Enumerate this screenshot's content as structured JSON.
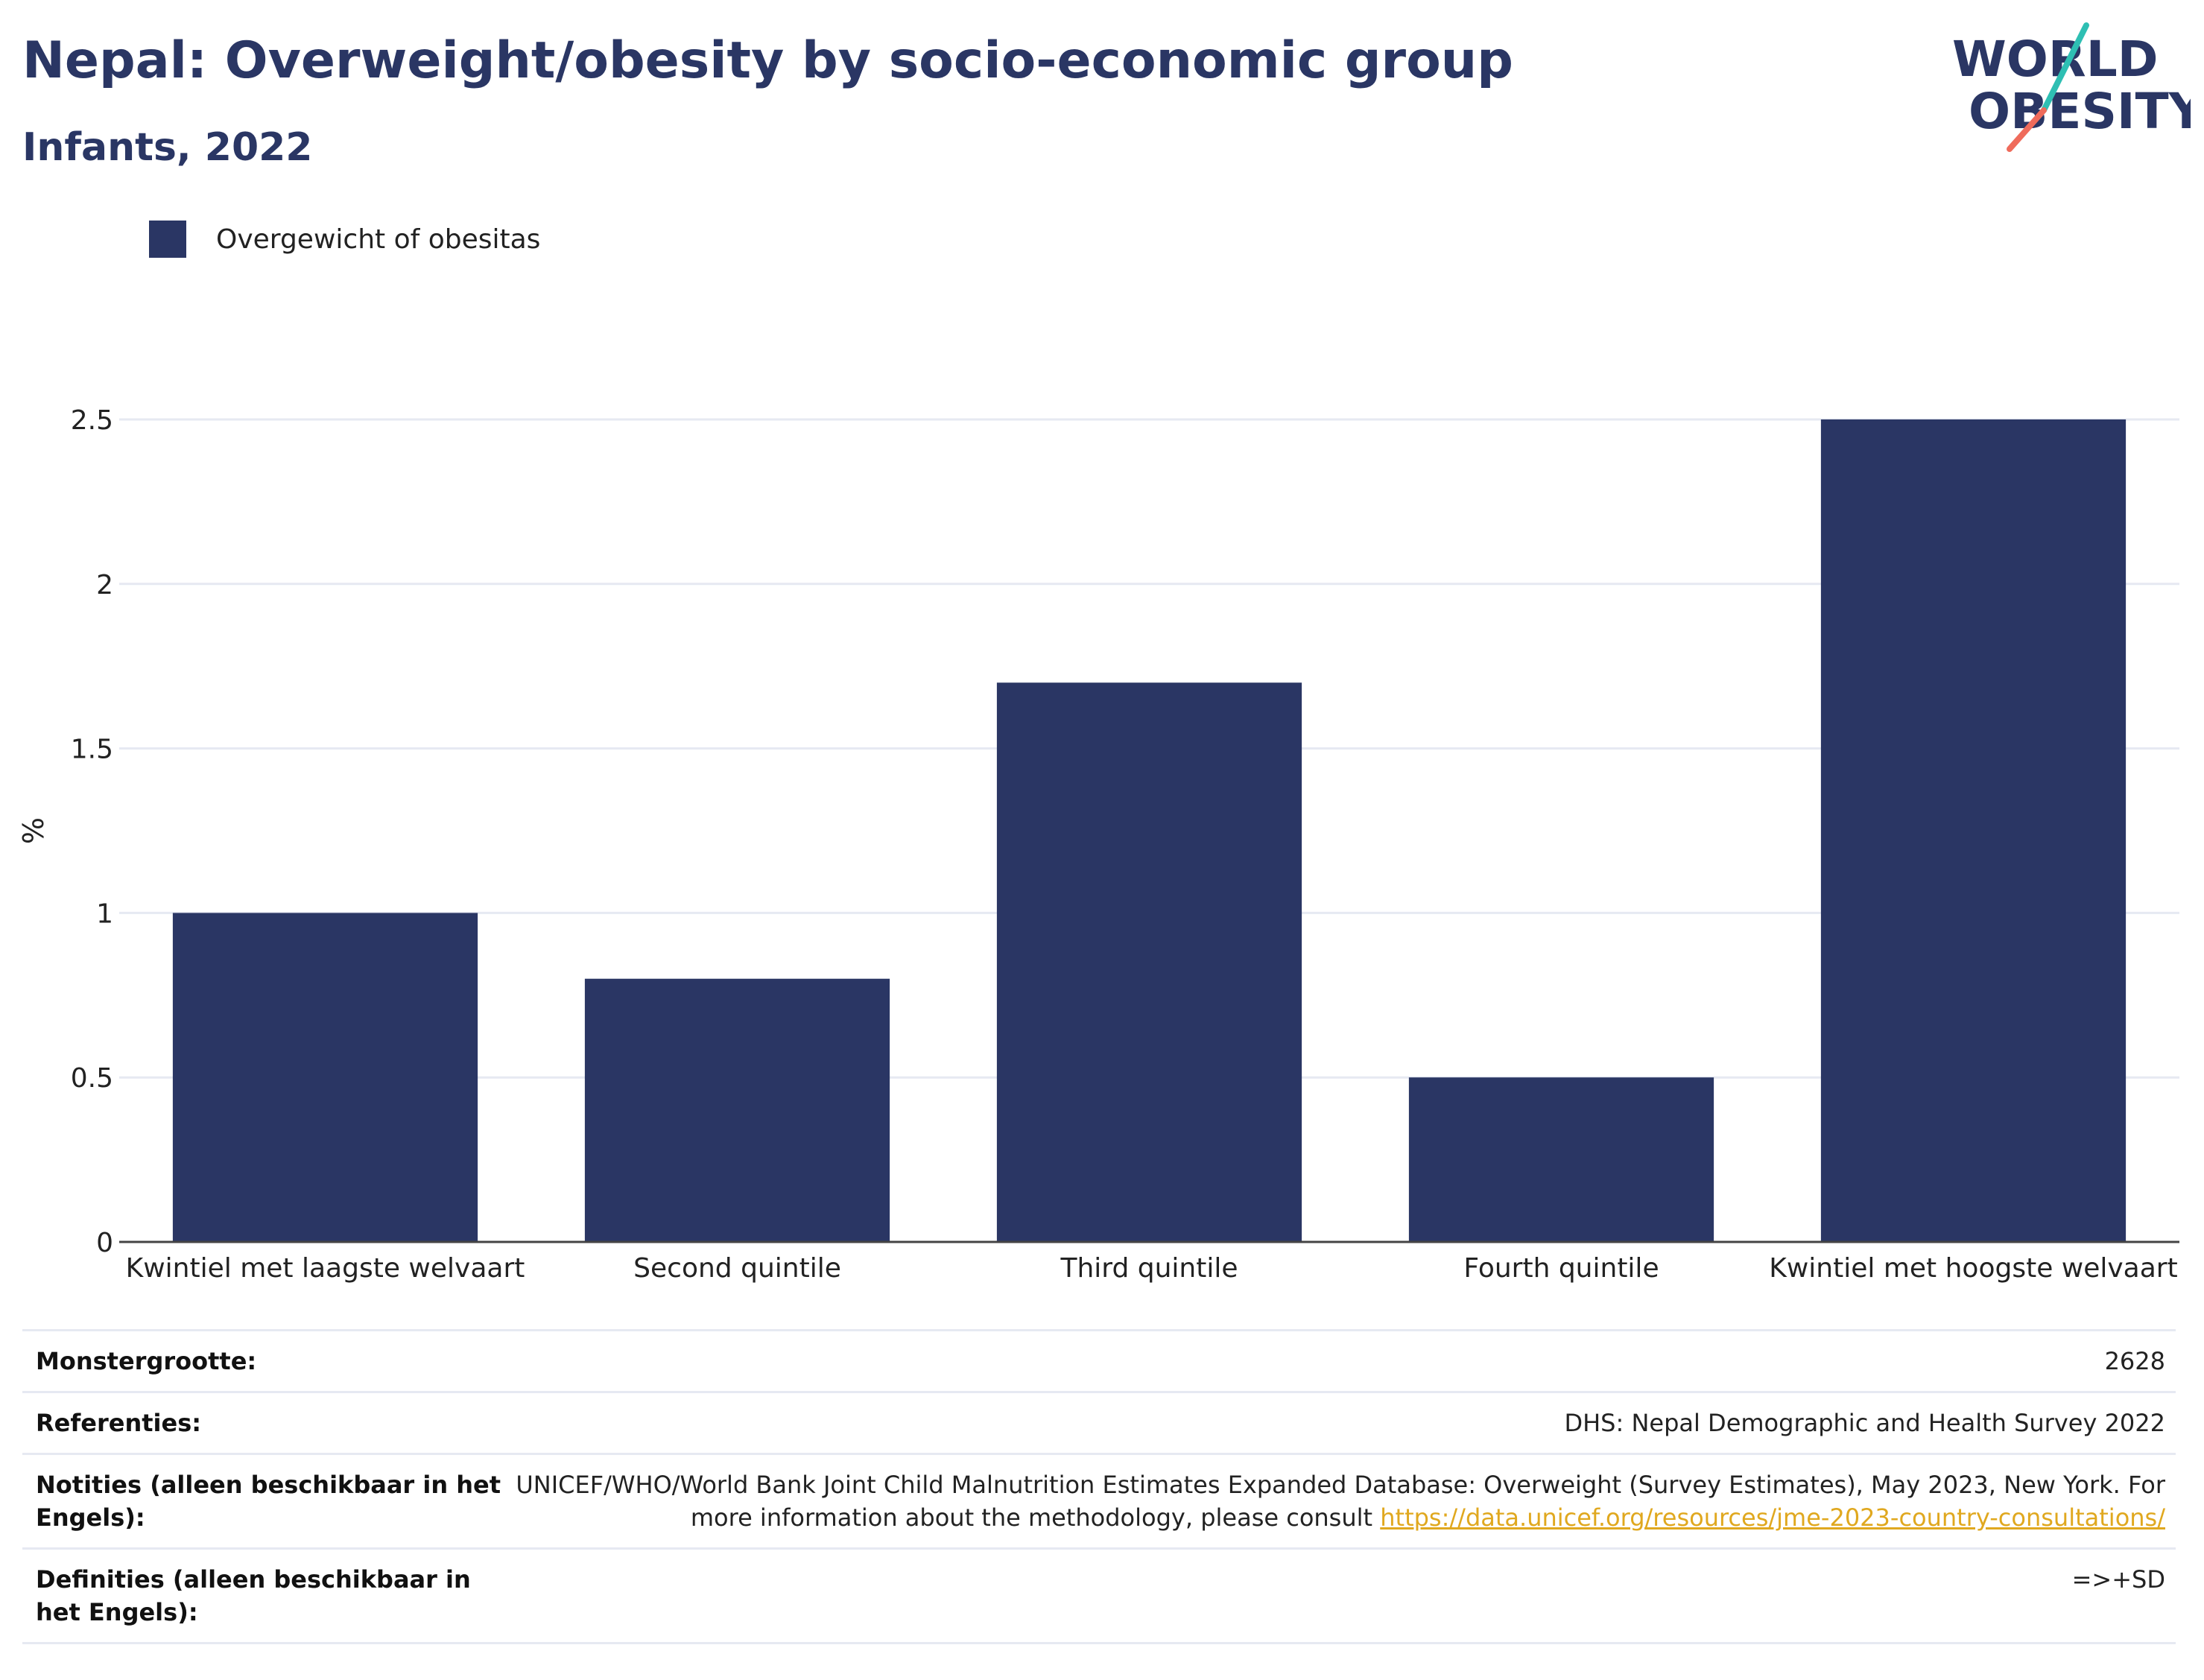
{
  "title": "Nepal: Overweight/obesity by socio-economic group",
  "subtitle": "Infants, 2022",
  "logo": {
    "line1": "WORLD",
    "line2": "OBESITY"
  },
  "colors": {
    "primary": "#2a3664",
    "bar": "#2a3664",
    "logo_teal": "#2ebfb3",
    "logo_coral": "#ef6b5b",
    "link": "#e0a81f",
    "grid": "#e6e9f2"
  },
  "chart_data": {
    "type": "bar",
    "categories": [
      "Kwintiel met laagste welvaart",
      "Second quintile",
      "Third quintile",
      "Fourth quintile",
      "Kwintiel met hoogste welvaart"
    ],
    "series": [
      {
        "name": "Overgewicht of obesitas",
        "values": [
          1.0,
          0.8,
          1.7,
          0.5,
          2.5
        ]
      }
    ],
    "xlabel": "",
    "ylabel": "%",
    "ylim": [
      0,
      2.5
    ],
    "yticks": [
      0,
      0.5,
      1,
      1.5,
      2,
      2.5
    ],
    "ytick_labels": [
      "0",
      "0.5",
      "1",
      "1.5",
      "2",
      "2.5"
    ],
    "grid": true,
    "legend": "top-left"
  },
  "info": {
    "rows": [
      {
        "key": "Monstergrootte:",
        "value": "2628"
      },
      {
        "key": "Referenties:",
        "value": "DHS: Nepal Demographic and Health Survey 2022"
      },
      {
        "key": "Notities (alleen beschikbaar in het Engels):",
        "value": "UNICEF/WHO/World Bank Joint Child Malnutrition Estimates Expanded Database: Overweight (Survey Estimates), May 2023, New York. For more information about the methodology, please consult ",
        "link": "https://data.unicef.org/resources/jme-2023-country-consultations/"
      },
      {
        "key": "Definities (alleen beschikbaar in het Engels):",
        "value": "=>+SD"
      }
    ]
  }
}
